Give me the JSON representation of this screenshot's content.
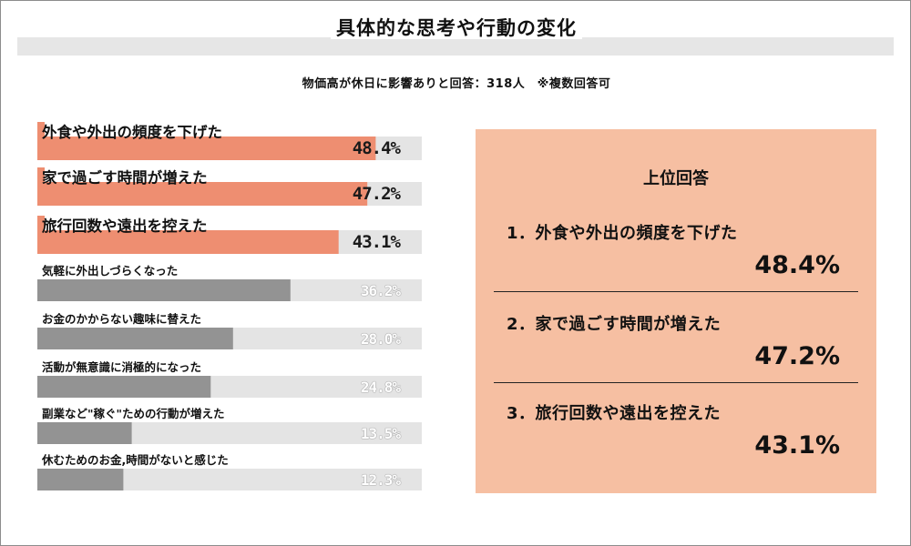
{
  "title": "具体的な思考や行動の変化",
  "subtitle": "物価高が休日に影響ありと回答：318人　※複数回答可",
  "chart_data": {
    "type": "bar",
    "orientation": "horizontal",
    "categories": [
      "外食や外出の頻度を下げた",
      "家で過ごす時間が増えた",
      "旅行回数や遠出を控えた",
      "気軽に外出しづらくなった",
      "お金のかからない趣味に替えた",
      "活動が無意識に消極的になった",
      "副業など\"稼ぐ\"ための行動が増えた",
      "休むためのお金,時間がないと感じた"
    ],
    "values": [
      48.4,
      47.2,
      43.1,
      36.2,
      28.0,
      24.8,
      13.5,
      12.3
    ],
    "value_labels": [
      "48.4%",
      "47.2%",
      "43.1%",
      "36.2%",
      "28.0%",
      "24.8%",
      "13.5%",
      "12.3%"
    ],
    "xlim": [
      0,
      55
    ],
    "highlight_count": 3,
    "colors": {
      "highlight": "#ee8e71",
      "normal": "#939393",
      "track": "#e4e4e4"
    },
    "grid": false,
    "legend": "none"
  },
  "panel": {
    "heading": "上位回答",
    "items": [
      {
        "label": "1．外食や外出の頻度を下げた",
        "value": "48.4%"
      },
      {
        "label": "2．家で過ごす時間が増えた",
        "value": "47.2%"
      },
      {
        "label": "3．旅行回数や遠出を控えた",
        "value": "43.1%"
      }
    ],
    "background": "#f6bfa2"
  }
}
